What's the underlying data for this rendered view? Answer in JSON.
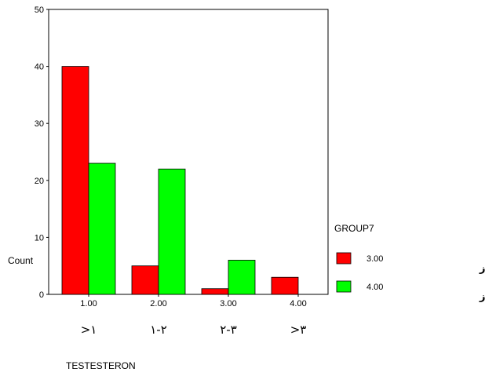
{
  "chart_data": {
    "type": "bar",
    "categories": [
      "1.00",
      "2.00",
      "3.00",
      "4.00"
    ],
    "category_sublabels": [
      ">۱",
      "۱-۲",
      "۲-۳",
      ">۳"
    ],
    "series": [
      {
        "name": "3.00",
        "label": "زنان سنگ سا ز",
        "color": "#ff0000",
        "values": [
          40,
          5,
          1,
          3
        ]
      },
      {
        "name": "4.00",
        "label": "زنان غیرسنگ ساز",
        "color": "#00ff00",
        "values": [
          23,
          22,
          6,
          0
        ]
      }
    ],
    "yticks": [
      0,
      10,
      20,
      30,
      40,
      50
    ],
    "ylim": [
      0,
      50
    ],
    "ylabel": "Count",
    "xlabel": "TESTESTERON",
    "legend_title": "GROUP7",
    "legend_position": "right",
    "grid": false
  }
}
